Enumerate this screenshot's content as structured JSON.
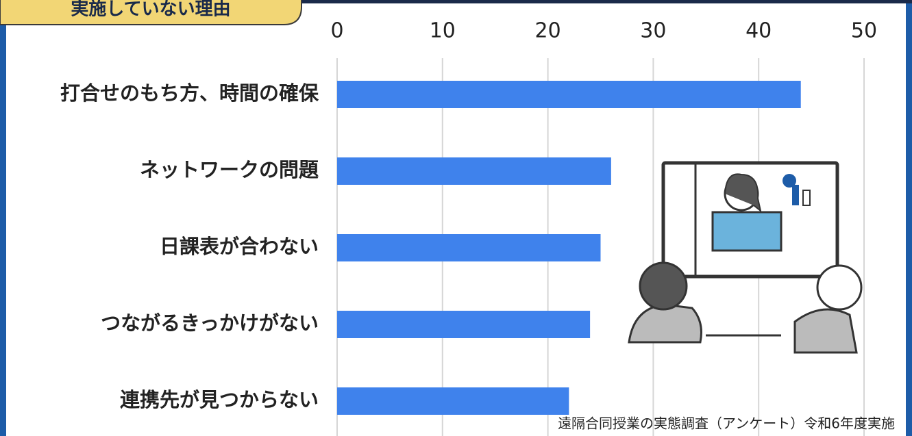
{
  "chart_data": {
    "type": "bar",
    "orientation": "horizontal",
    "title": "実施していない理由",
    "categories": [
      "打合せのもち方、時間の確保",
      "ネットワークの問題",
      "日課表が合わない",
      "つながるきっかけがない",
      "連携先が見つからない"
    ],
    "values": [
      44,
      26,
      25,
      24,
      22
    ],
    "color": "#3f82ec",
    "xlim": [
      0,
      50
    ],
    "xticks": [
      0,
      10,
      20,
      30,
      40,
      50
    ],
    "grid": true,
    "source": "遠隔合同授業の実態調査（アンケート）令和6年度実施"
  }
}
